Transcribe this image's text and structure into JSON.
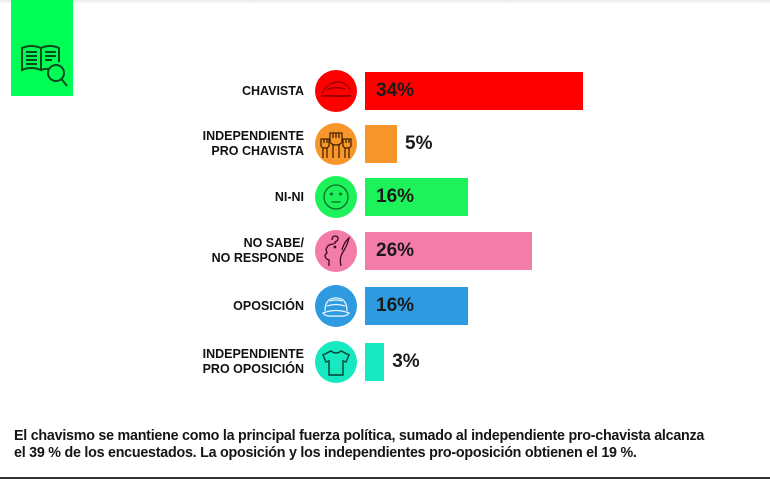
{
  "chart_data": {
    "type": "bar",
    "orientation": "horizontal",
    "title": "",
    "xlabel": "",
    "ylabel": "",
    "xlim": [
      0,
      34
    ],
    "grid": false,
    "categories": [
      [
        "CHAVISTA"
      ],
      [
        "INDEPENDIENTE",
        "PRO CHAVISTA"
      ],
      [
        "NI-NI"
      ],
      [
        "NO SABE/",
        "NO RESPONDE"
      ],
      [
        "OPOSICIÓN"
      ],
      [
        "INDEPENDIENTE",
        "PRO OPOSICIÓN"
      ]
    ],
    "values": [
      34,
      5,
      16,
      26,
      16,
      3
    ],
    "value_labels": [
      "34%",
      "5%",
      "16%",
      "26%",
      "16%",
      "3%"
    ],
    "colors": [
      "#ff0000",
      "#f7962b",
      "#1ef25a",
      "#f47ca8",
      "#2e9be0",
      "#16e8c0"
    ],
    "icons": [
      "red-beret-icon",
      "raised-fists-icon",
      "neutral-face-icon",
      "head-question-icon",
      "cap-icon",
      "t-shirt-icon"
    ],
    "unit": "%"
  },
  "logo": {
    "icon": "book-magnifier-icon",
    "color": "#00ff55"
  },
  "footnote": {
    "line1": "El chavismo se mantiene como la principal fuerza política, sumado al independiente pro-chavista alcanza",
    "line2": "el 39 % de los encuestados. La oposición y los independientes pro-oposición obtienen el 19 %."
  }
}
